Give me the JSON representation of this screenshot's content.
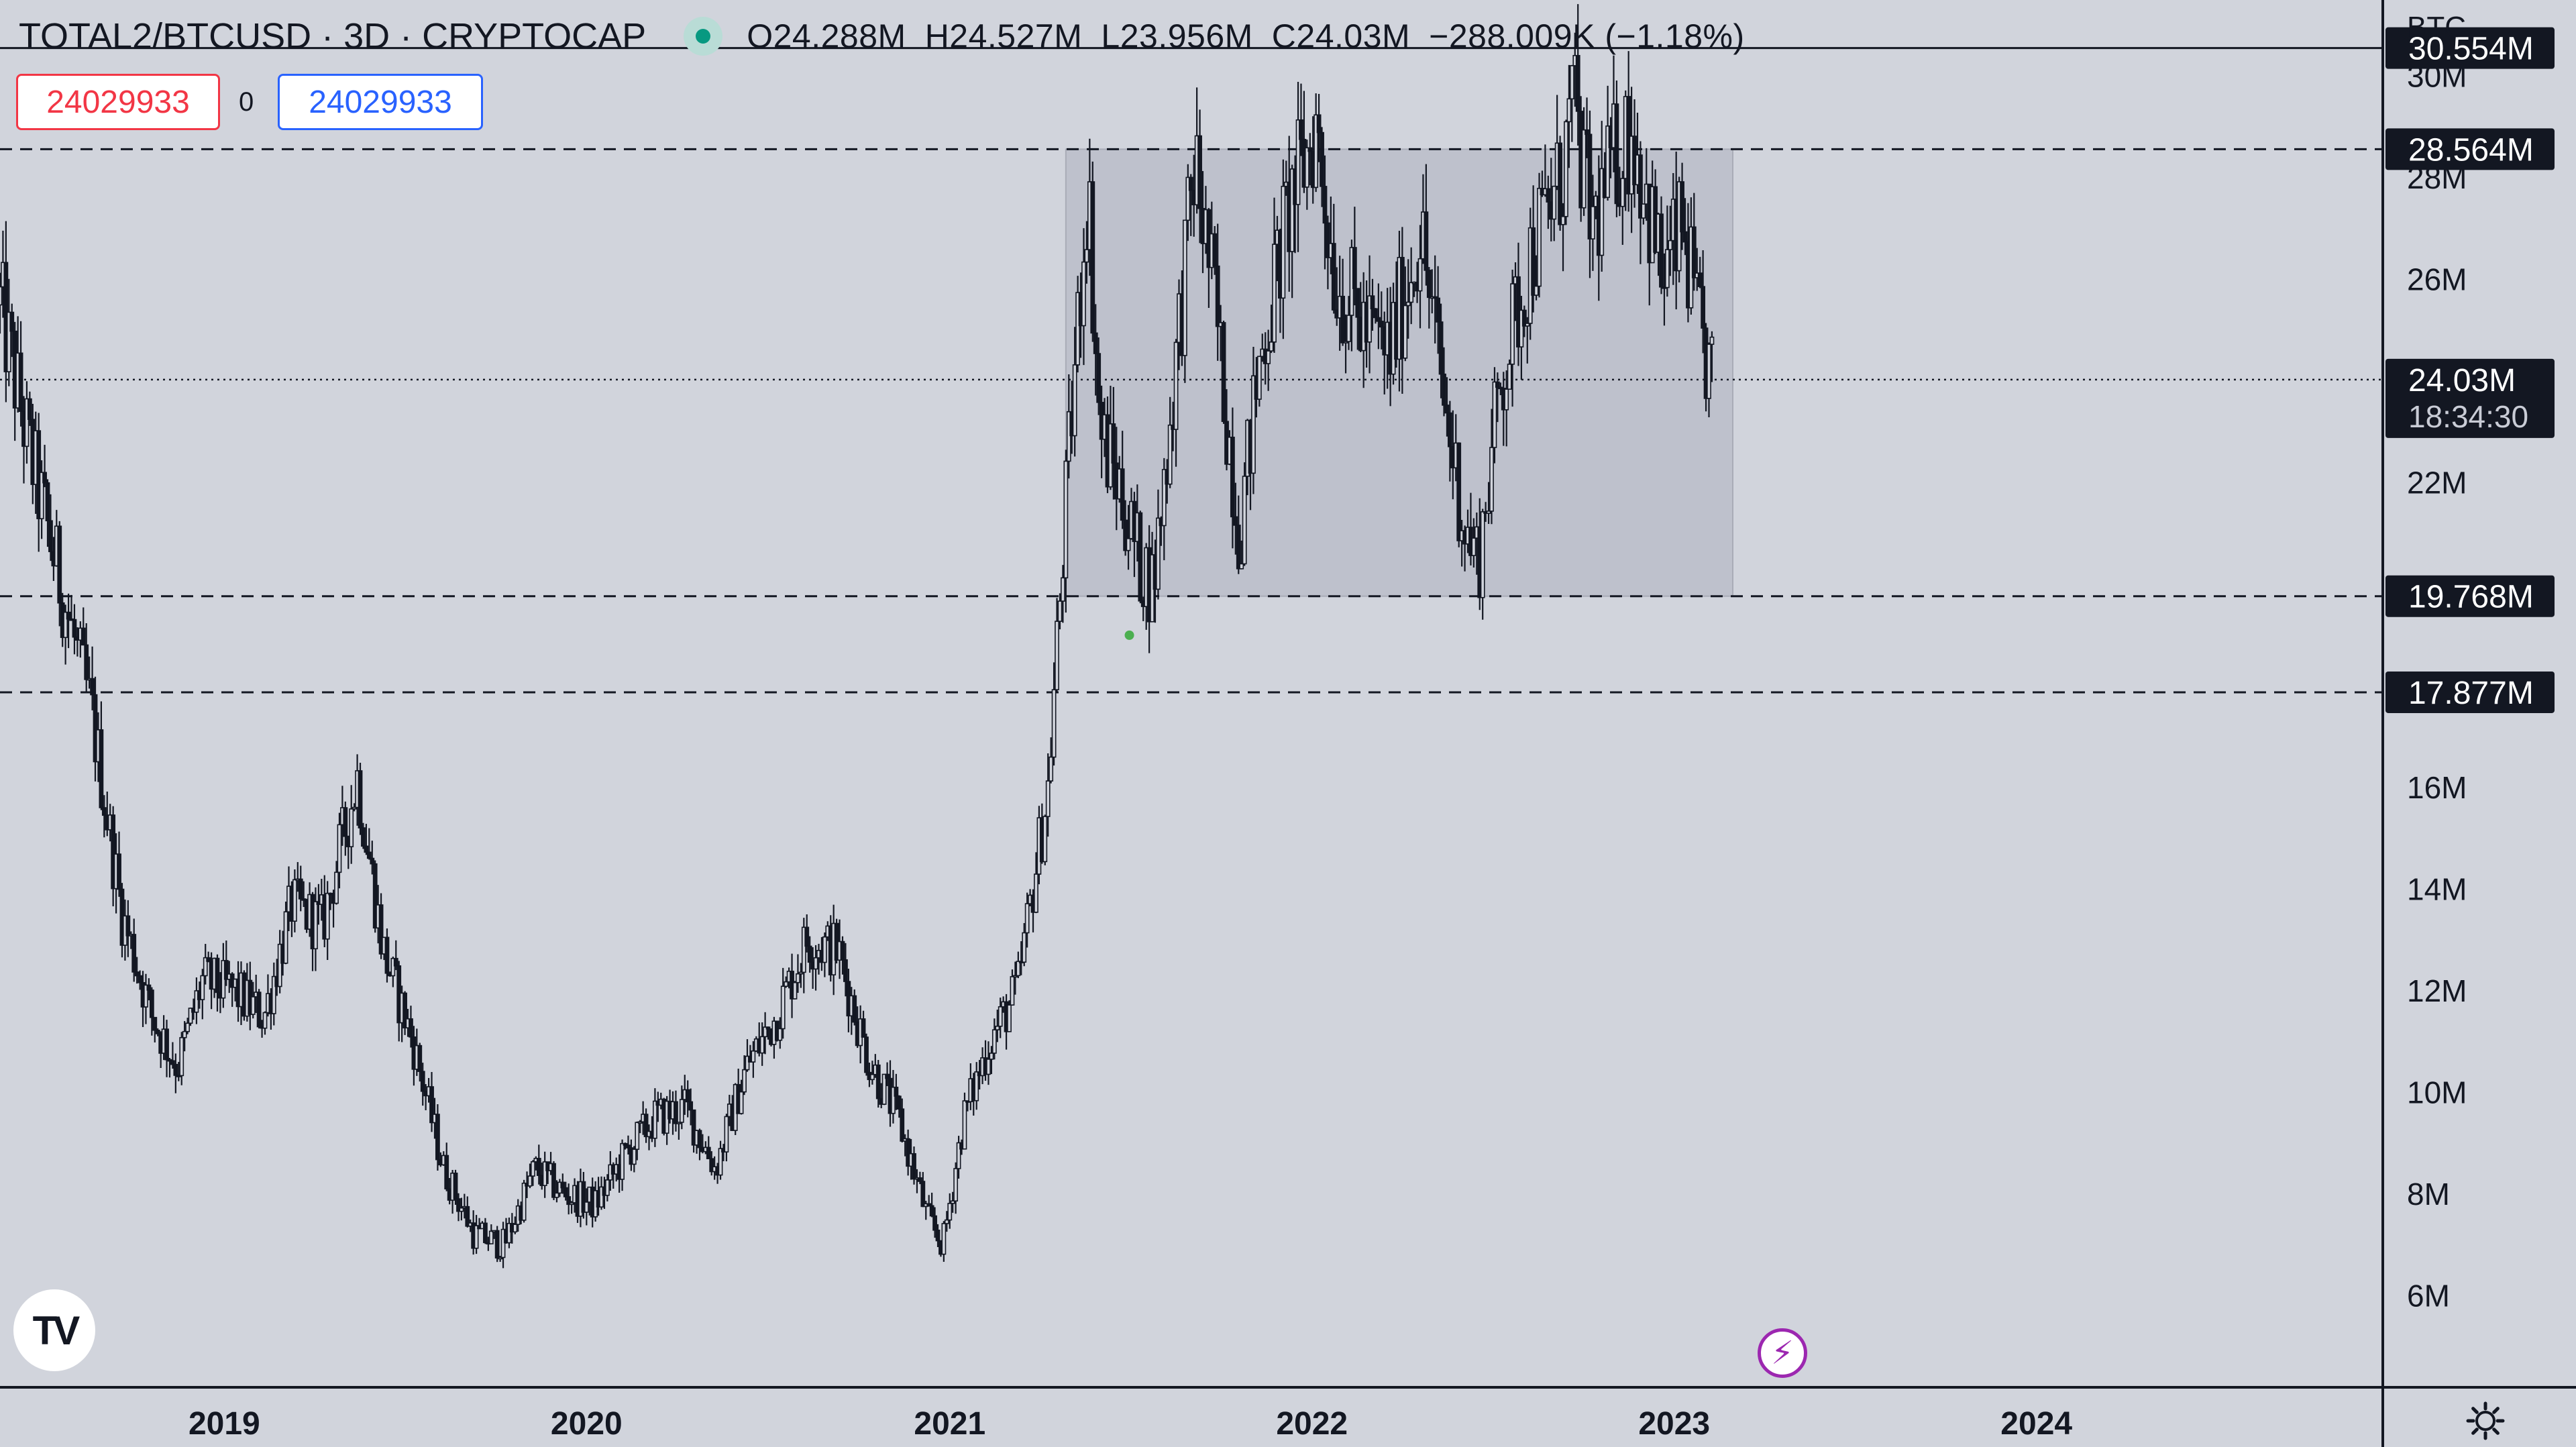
{
  "header": {
    "symbol": "TOTAL2/BTCUSD · 3D · CRYPTOCAP",
    "open": "O24.288M",
    "high": "H24.527M",
    "low": "L23.956M",
    "close": "C24.03M",
    "change": "−288.009K (−1.18%)",
    "status_color": "#089981"
  },
  "order_panel": {
    "sell_value": "24029933",
    "quantity": "0",
    "buy_value": "24029933"
  },
  "axis_unit": "BTC",
  "colors": {
    "background": "#d1d4dc",
    "candles": "#131722",
    "range_box": "#b6b9c4",
    "label_bg": "#131722",
    "marker": "#4caf50",
    "flash": "#9c27b0"
  },
  "chart_data": {
    "type": "candlestick",
    "title": "TOTAL2/BTCUSD · 3D · CRYPTOCAP",
    "ylabel": "BTC",
    "ylim": [
      4200000,
      31500000
    ],
    "xlim": [
      "2018-05-20",
      "2024-12-15"
    ],
    "x_ticks": [
      "2019",
      "2020",
      "2021",
      "2022",
      "2023",
      "2024"
    ],
    "y_ticks": [
      {
        "value": 6000000,
        "label": "6M"
      },
      {
        "value": 8000000,
        "label": "8M"
      },
      {
        "value": 10000000,
        "label": "10M"
      },
      {
        "value": 12000000,
        "label": "12M"
      },
      {
        "value": 14000000,
        "label": "14M"
      },
      {
        "value": 16000000,
        "label": "16M"
      },
      {
        "value": 22000000,
        "label": "22M"
      },
      {
        "value": 26000000,
        "label": "26M"
      },
      {
        "value": 28000000,
        "label": "28M"
      },
      {
        "value": 30000000,
        "label": "30M"
      }
    ],
    "price_path": [
      [
        "2018-05-20",
        25500000
      ],
      [
        "2018-06-20",
        22500000
      ],
      [
        "2018-07-20",
        20000000
      ],
      [
        "2018-08-20",
        17500000
      ],
      [
        "2018-09-20",
        13500000
      ],
      [
        "2018-10-20",
        11500000
      ],
      [
        "2018-11-15",
        10500000
      ],
      [
        "2018-12-10",
        12200000
      ],
      [
        "2019-01-10",
        12000000
      ],
      [
        "2019-02-10",
        11500000
      ],
      [
        "2019-03-10",
        13700000
      ],
      [
        "2019-04-10",
        13300000
      ],
      [
        "2019-05-15",
        16200000
      ],
      [
        "2019-06-10",
        12800000
      ],
      [
        "2019-07-10",
        11000000
      ],
      [
        "2019-08-10",
        8500000
      ],
      [
        "2019-09-10",
        7200000
      ],
      [
        "2019-10-10",
        7000000
      ],
      [
        "2019-11-10",
        8500000
      ],
      [
        "2019-12-10",
        8000000
      ],
      [
        "2020-01-10",
        7800000
      ],
      [
        "2020-02-10",
        8800000
      ],
      [
        "2020-03-10",
        9500000
      ],
      [
        "2020-04-10",
        9700000
      ],
      [
        "2020-05-10",
        8500000
      ],
      [
        "2020-06-10",
        10500000
      ],
      [
        "2020-07-10",
        11500000
      ],
      [
        "2020-08-10",
        13000000
      ],
      [
        "2020-09-10",
        12800000
      ],
      [
        "2020-10-10",
        10700000
      ],
      [
        "2020-11-10",
        9500000
      ],
      [
        "2020-12-10",
        7500000
      ],
      [
        "2020-12-25",
        7000000
      ],
      [
        "2021-01-15",
        9500000
      ],
      [
        "2021-02-10",
        11000000
      ],
      [
        "2021-03-10",
        12000000
      ],
      [
        "2021-04-10",
        16000000
      ],
      [
        "2021-05-01",
        22500000
      ],
      [
        "2021-05-20",
        28000000
      ],
      [
        "2021-06-01",
        23000000
      ],
      [
        "2021-06-20",
        22000000
      ],
      [
        "2021-07-10",
        20500000
      ],
      [
        "2021-07-25",
        20000000
      ],
      [
        "2021-08-10",
        23000000
      ],
      [
        "2021-09-05",
        28300000
      ],
      [
        "2021-09-25",
        25500000
      ],
      [
        "2021-10-20",
        21000000
      ],
      [
        "2021-11-10",
        24500000
      ],
      [
        "2021-12-10",
        27500000
      ],
      [
        "2022-01-05",
        29000000
      ],
      [
        "2022-01-25",
        26000000
      ],
      [
        "2022-02-25",
        25000000
      ],
      [
        "2022-03-20",
        24500000
      ],
      [
        "2022-04-20",
        27000000
      ],
      [
        "2022-05-15",
        23500000
      ],
      [
        "2022-06-05",
        21000000
      ],
      [
        "2022-06-18",
        20500000
      ],
      [
        "2022-07-10",
        24000000
      ],
      [
        "2022-08-10",
        26500000
      ],
      [
        "2022-09-10",
        28000000
      ],
      [
        "2022-09-20",
        29500000
      ],
      [
        "2022-10-10",
        27000000
      ],
      [
        "2022-11-05",
        28500000
      ],
      [
        "2022-11-20",
        29000000
      ],
      [
        "2022-12-20",
        26000000
      ],
      [
        "2023-01-10",
        27000000
      ],
      [
        "2023-01-25",
        25000000
      ],
      [
        "2023-02-08",
        24030000
      ]
    ],
    "levels": [
      {
        "value": 30554000,
        "label": "30.554M",
        "style": "solid"
      },
      {
        "value": 28564000,
        "label": "28.564M",
        "style": "dashed"
      },
      {
        "value": 19768000,
        "label": "19.768M",
        "style": "dashed"
      },
      {
        "value": 17877000,
        "label": "17.877M",
        "style": "dashed"
      }
    ],
    "last_price": {
      "value": 24030000,
      "label": "24.03M",
      "countdown": "18:34:30"
    },
    "range_box": {
      "x0": "2021-04-28",
      "x1": "2023-03-01",
      "y0": 19768000,
      "y1": 28564000
    },
    "marker": {
      "x": "2021-07-01",
      "value": 19000000
    }
  }
}
